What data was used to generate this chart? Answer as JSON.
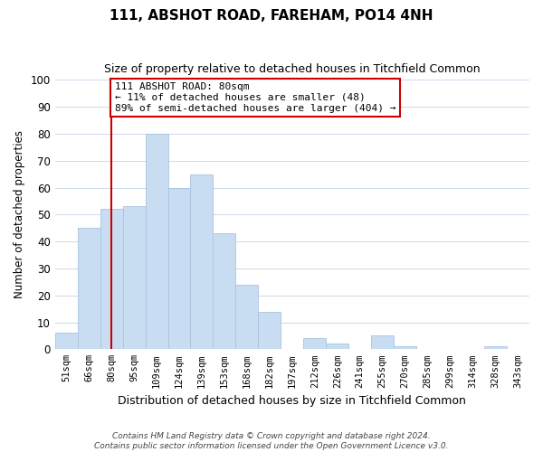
{
  "title": "111, ABSHOT ROAD, FAREHAM, PO14 4NH",
  "subtitle": "Size of property relative to detached houses in Titchfield Common",
  "xlabel": "Distribution of detached houses by size in Titchfield Common",
  "ylabel": "Number of detached properties",
  "bin_labels": [
    "51sqm",
    "66sqm",
    "80sqm",
    "95sqm",
    "109sqm",
    "124sqm",
    "139sqm",
    "153sqm",
    "168sqm",
    "182sqm",
    "197sqm",
    "212sqm",
    "226sqm",
    "241sqm",
    "255sqm",
    "270sqm",
    "285sqm",
    "299sqm",
    "314sqm",
    "328sqm",
    "343sqm"
  ],
  "bar_heights": [
    6,
    45,
    52,
    53,
    80,
    60,
    65,
    43,
    24,
    14,
    0,
    4,
    2,
    0,
    5,
    1,
    0,
    0,
    0,
    1,
    0
  ],
  "bar_color": "#c9ddf2",
  "bar_edge_color": "#a8c4e0",
  "vline_x_index": 2,
  "vline_color": "#cc0000",
  "annotation_line1": "111 ABSHOT ROAD: 80sqm",
  "annotation_line2": "← 11% of detached houses are smaller (48)",
  "annotation_line3": "89% of semi-detached houses are larger (404) →",
  "annotation_box_edge_color": "#cc0000",
  "annotation_box_face_color": "#ffffff",
  "ylim": [
    0,
    100
  ],
  "yticks": [
    0,
    10,
    20,
    30,
    40,
    50,
    60,
    70,
    80,
    90,
    100
  ],
  "footer_line1": "Contains HM Land Registry data © Crown copyright and database right 2024.",
  "footer_line2": "Contains public sector information licensed under the Open Government Licence v3.0.",
  "background_color": "#ffffff",
  "grid_color": "#ccd9e8"
}
